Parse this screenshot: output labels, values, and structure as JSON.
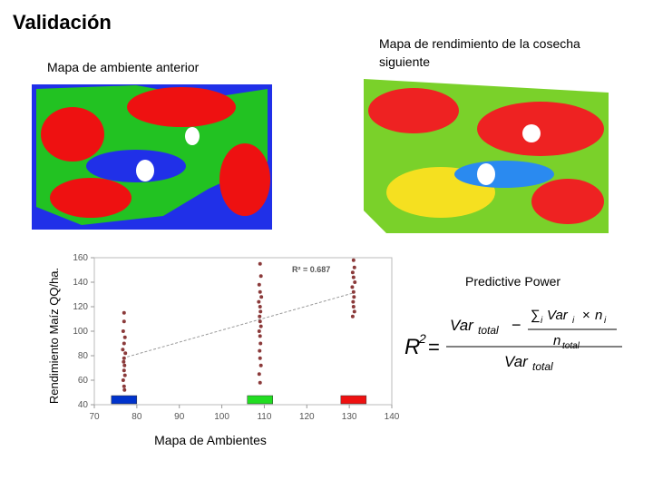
{
  "title": "Validación",
  "left_map_title": "Mapa de ambiente anterior",
  "right_map_title": "Mapa de rendimiento de la cosecha siguiente",
  "predictive_power": "Predictive Power",
  "formula": [
    "R",
    "2",
    "=",
    "Var",
    "total",
    "−",
    "∑",
    "i",
    "Var",
    "i",
    "×",
    "n",
    "i",
    "n",
    "total",
    "Var",
    "total"
  ],
  "chart_data": {
    "type": "scatter",
    "y_label": "Rendimiento Maíz QQ/ha.",
    "x_label": "Mapa de Ambientes",
    "annotation": "R² = 0.687",
    "xlim": [
      70,
      140
    ],
    "xticks": [
      70,
      80,
      90,
      100,
      110,
      120,
      130,
      140
    ],
    "ylim": [
      40,
      160
    ],
    "yticks": [
      40,
      60,
      80,
      100,
      120,
      140,
      160
    ],
    "color": "#8b3a3a",
    "trendline": true,
    "x": [
      77,
      77,
      76.8,
      77.2,
      77,
      76.7,
      77.3,
      77,
      76.9,
      77.1,
      77,
      77.2,
      76.8,
      77,
      77.1,
      109,
      109.2,
      108.8,
      109,
      109.3,
      108.7,
      109,
      109.1,
      108.9,
      109,
      109.2,
      108.8,
      109,
      109.1,
      108.9,
      109,
      109.2,
      108.8,
      109,
      131,
      131.2,
      130.8,
      131,
      131.3,
      130.7,
      131,
      131.1,
      130.9,
      131,
      131.2,
      130.8
    ],
    "values": [
      115,
      108,
      100,
      95,
      90,
      85,
      82,
      78,
      75,
      72,
      68,
      64,
      60,
      55,
      52,
      155,
      145,
      138,
      132,
      128,
      124,
      120,
      116,
      112,
      108,
      104,
      100,
      96,
      90,
      84,
      78,
      72,
      65,
      58,
      158,
      152,
      148,
      144,
      140,
      136,
      132,
      128,
      124,
      120,
      116,
      112
    ],
    "class_colors": [
      {
        "x": 77,
        "color": "#0033cc"
      },
      {
        "x": 109,
        "color": "#22dd22"
      },
      {
        "x": 131,
        "color": "#ee1111"
      }
    ]
  }
}
